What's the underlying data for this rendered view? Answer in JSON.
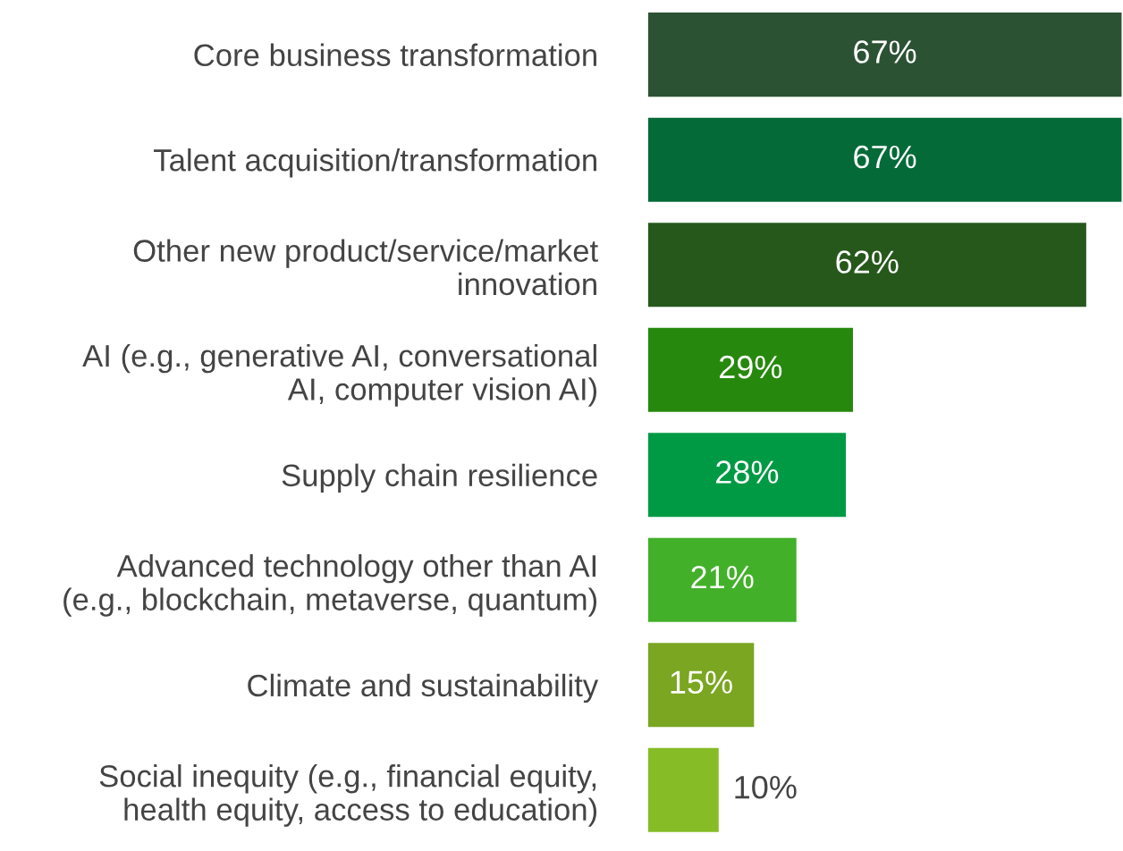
{
  "chart_data": {
    "type": "bar",
    "orientation": "horizontal",
    "categories": [
      "Core business transformation",
      "Talent acquisition/transformation",
      "Other new product/service/market\ninnovation",
      "AI (e.g., generative AI, conversational\nAI, computer vision AI)",
      "Supply chain resilience",
      "Advanced technology other than AI\n(e.g., blockchain, metaverse, quantum)",
      "Climate and sustainability",
      "Social inequity (e.g., financial equity,\nhealth equity, access to education)"
    ],
    "values": [
      67,
      67,
      62,
      29,
      28,
      21,
      15,
      10
    ],
    "value_labels": [
      "67%",
      "67%",
      "62%",
      "29%",
      "28%",
      "21%",
      "15%",
      "10%"
    ],
    "colors": [
      "#2c5234",
      "#046a38",
      "#26581c",
      "#26890d",
      "#009a44",
      "#43b02a",
      "#7aa621",
      "#86bc25"
    ]
  }
}
